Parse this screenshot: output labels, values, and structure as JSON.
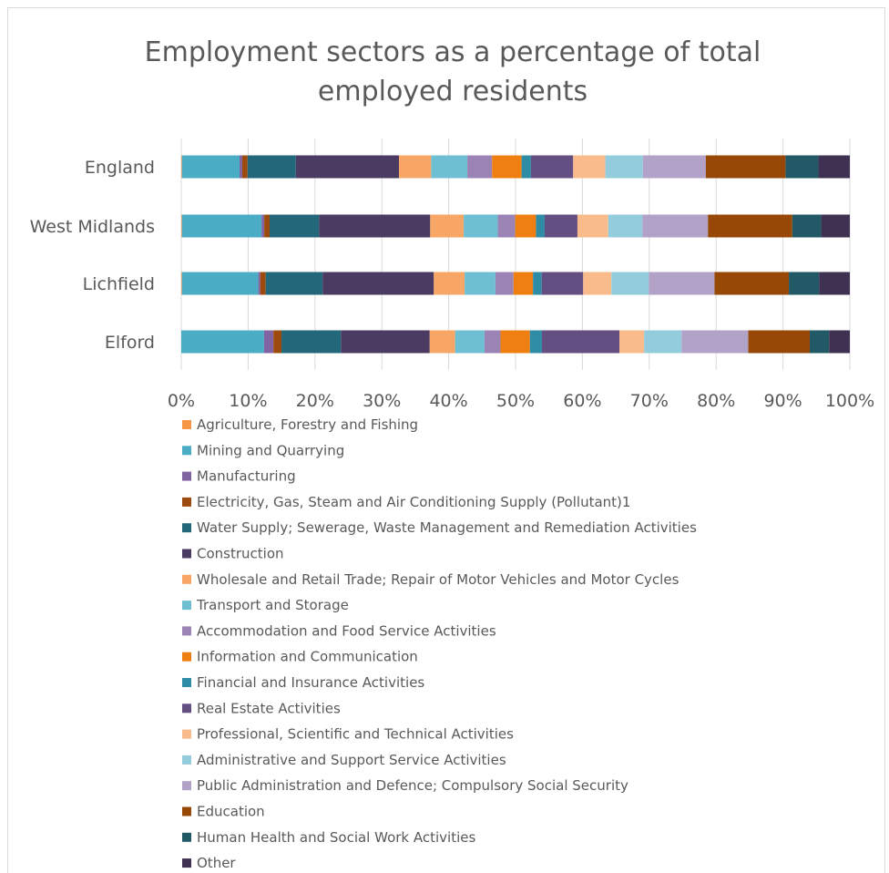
{
  "chart_data": {
    "type": "bar",
    "orientation": "horizontal",
    "stacked": "percent",
    "title": "Employment sectors as a percentage of total employed residents",
    "title_lines": [
      "Employment sectors as a percentage of total",
      "employed residents"
    ],
    "categories": [
      "England",
      "West Midlands",
      "Lichfield",
      "Elford"
    ],
    "xlim": [
      0,
      100
    ],
    "xticks": [
      "0%",
      "10%",
      "20%",
      "30%",
      "40%",
      "50%",
      "60%",
      "70%",
      "80%",
      "90%",
      "100%"
    ],
    "grid": true,
    "legend_position": "bottom",
    "series": [
      {
        "name": "Agriculture, Forestry and Fishing",
        "color": "#f79646",
        "values": [
          0.1,
          0.1,
          0.1,
          0.0
        ]
      },
      {
        "name": "Mining and Quarrying",
        "color": "#4bacc6",
        "values": [
          8.6,
          11.9,
          11.4,
          12.4
        ]
      },
      {
        "name": "Manufacturing",
        "color": "#8064a2",
        "values": [
          0.4,
          0.4,
          0.3,
          1.4
        ]
      },
      {
        "name": "Electricity, Gas, Steam and Air Conditioning Supply (Pollutant)1",
        "color": "#9c4a0d",
        "values": [
          0.8,
          0.8,
          0.8,
          1.2
        ]
      },
      {
        "name": "Water Supply; Sewerage, Waste Management and Remediation Activities",
        "color": "#23687a",
        "values": [
          7.2,
          7.4,
          8.5,
          8.9
        ]
      },
      {
        "name": "Construction",
        "color": "#4b3a61",
        "values": [
          15.4,
          16.6,
          16.6,
          13.3
        ]
      },
      {
        "name": "Wholesale and Retail Trade; Repair of Motor Vehicles and Motor Cycles",
        "color": "#f7a665",
        "values": [
          4.8,
          5.0,
          4.6,
          3.8
        ]
      },
      {
        "name": "Transport and Storage",
        "color": "#6fbfd3",
        "values": [
          5.4,
          5.1,
          4.6,
          4.4
        ]
      },
      {
        "name": "Accommodation and Food Service Activities",
        "color": "#9b84b5",
        "values": [
          3.7,
          2.6,
          2.7,
          2.4
        ]
      },
      {
        "name": "Information and Communication",
        "color": "#f07f12",
        "values": [
          4.4,
          3.1,
          2.9,
          4.4
        ]
      },
      {
        "name": "Financial and Insurance Activities",
        "color": "#2f8ca5",
        "values": [
          1.4,
          1.3,
          1.3,
          1.8
        ]
      },
      {
        "name": "Real Estate Activities",
        "color": "#644f82",
        "values": [
          6.3,
          4.9,
          6.2,
          11.6
        ]
      },
      {
        "name": "Professional, Scientific and Technical Activities",
        "color": "#f9bb8c",
        "values": [
          4.8,
          4.6,
          4.2,
          3.7
        ]
      },
      {
        "name": "Administrative and Support Service Activities",
        "color": "#93cddd",
        "values": [
          5.6,
          5.1,
          5.6,
          5.6
        ]
      },
      {
        "name": "Public Administration and Defence; Compulsory Social Security",
        "color": "#b3a2c7",
        "values": [
          9.4,
          9.8,
          9.8,
          10.0
        ]
      },
      {
        "name": "Education",
        "color": "#974806",
        "values": [
          11.9,
          12.6,
          11.1,
          9.2
        ]
      },
      {
        "name": "Human Health and Social Work Activities",
        "color": "#215967",
        "values": [
          4.9,
          4.3,
          4.5,
          2.9
        ]
      },
      {
        "name": "Other",
        "color": "#3f3151",
        "values": [
          4.7,
          4.3,
          4.6,
          3.1
        ]
      }
    ]
  }
}
